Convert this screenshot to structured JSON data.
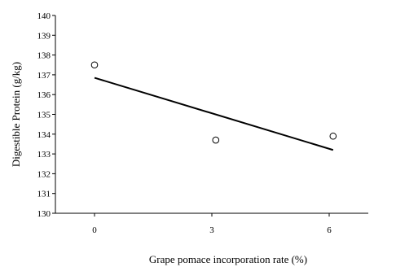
{
  "chart_data": {
    "type": "scatter",
    "title": "",
    "xlabel": "Grape pomace incorporation rate (%)",
    "ylabel": "Digestible Protein (g/kg)",
    "xlim": [
      -1,
      7
    ],
    "ylim": [
      130,
      140
    ],
    "x_ticks": [
      0,
      3,
      6
    ],
    "y_ticks": [
      130,
      131,
      132,
      133,
      134,
      135,
      136,
      137,
      138,
      139,
      140
    ],
    "grid": false,
    "legend": "none",
    "series": [
      {
        "x": [
          0,
          3.1,
          6.1
        ],
        "y": [
          137.5,
          133.7,
          133.9
        ],
        "marker": "open-circle"
      }
    ],
    "trendline": {
      "x": [
        0,
        6.1
      ],
      "y": [
        136.85,
        133.2
      ]
    }
  }
}
